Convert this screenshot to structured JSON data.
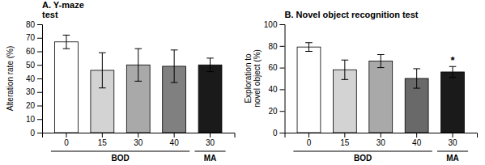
{
  "chart_data": [
    {
      "type": "bar",
      "title": "A. Y-maze\ntest",
      "ylabel": "Alteration rate (%)",
      "categories": [
        "0",
        "15",
        "30",
        "40",
        "30"
      ],
      "values": [
        67,
        46,
        50,
        49,
        50
      ],
      "errors": [
        5,
        13,
        12,
        12,
        5
      ],
      "colors": [
        "#ffffff",
        "#d3d3d3",
        "#a9a9a9",
        "#808080",
        "#1a1a1a"
      ],
      "ylim": [
        0,
        80
      ],
      "yticks": [
        0,
        10,
        20,
        30,
        40,
        50,
        60,
        70,
        80
      ],
      "groups": [
        {
          "label": "BOD",
          "range": [
            0,
            3
          ]
        },
        {
          "label": "MA",
          "range": [
            4,
            4
          ]
        }
      ],
      "annotations": []
    },
    {
      "type": "bar",
      "title": "B. Novel object recognition test",
      "ylabel": "Exploration to\nnovel object (%)",
      "categories": [
        "0",
        "15",
        "30",
        "40",
        "30"
      ],
      "values": [
        79,
        58,
        66,
        50,
        56
      ],
      "errors": [
        4,
        9,
        6,
        9,
        5
      ],
      "colors": [
        "#ffffff",
        "#d3d3d3",
        "#a9a9a9",
        "#696969",
        "#1a1a1a"
      ],
      "ylim": [
        0,
        100
      ],
      "yticks": [
        0,
        20,
        40,
        60,
        80,
        100
      ],
      "groups": [
        {
          "label": "BOD",
          "range": [
            0,
            3
          ]
        },
        {
          "label": "MA",
          "range": [
            4,
            4
          ]
        }
      ],
      "annotations": [
        {
          "text": "*",
          "index": 4
        }
      ]
    }
  ]
}
